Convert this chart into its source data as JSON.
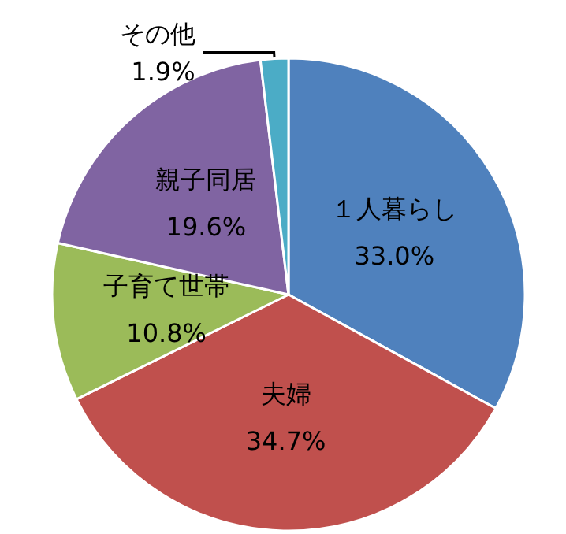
{
  "chart_data": {
    "type": "pie",
    "categories": [
      "１人暮らし",
      "夫婦",
      "子育て世帯",
      "親子同居",
      "その他"
    ],
    "values": [
      33.0,
      34.7,
      10.8,
      19.6,
      1.9
    ],
    "colors": [
      "#4f81bd",
      "#c0504d",
      "#9bbb59",
      "#8064a2",
      "#4bacc6"
    ],
    "value_labels": [
      "33.0%",
      "34.7%",
      "10.8%",
      "19.6%",
      "1.9%"
    ],
    "legend": false
  }
}
